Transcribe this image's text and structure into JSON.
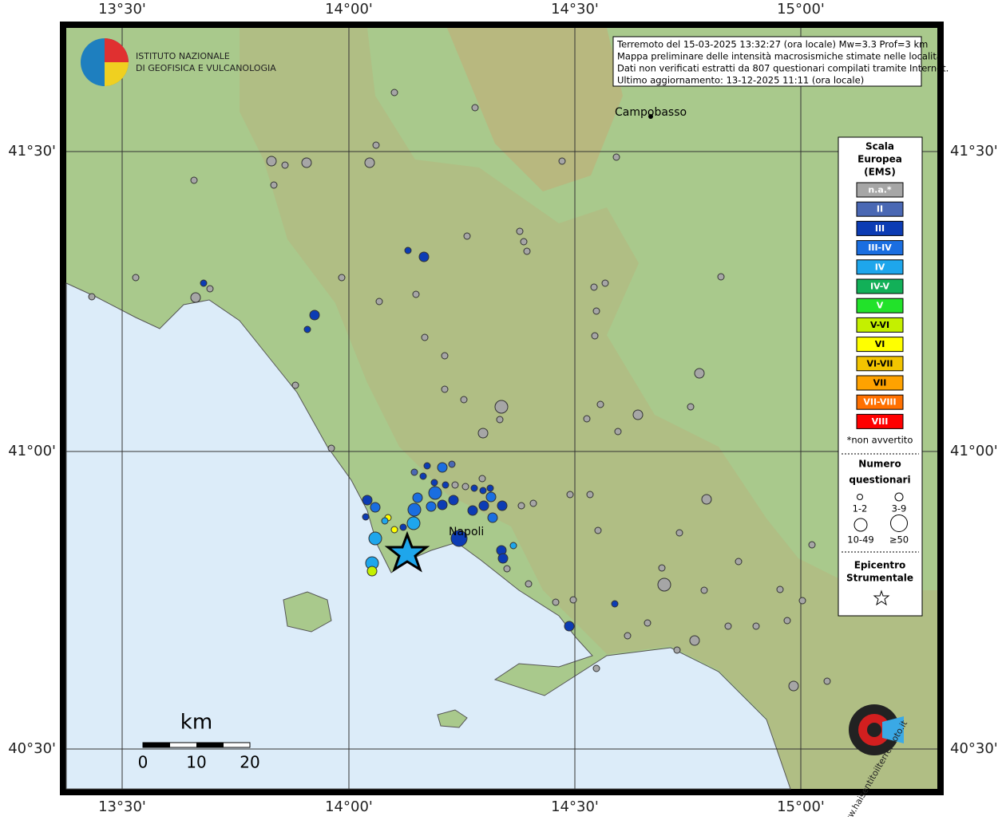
{
  "map": {
    "info": [
      "Terremoto del 15-03-2025 13:32:27 (ora locale) Mw=3.3 Prof=3 km",
      "Mappa preliminare delle intensità macrosismiche stimate nelle località",
      "Dati non verificati estratti da 807 questionari compilati tramite Internet.",
      "Ultimo aggiornamento: 13-12-2025 11:11 (ora locale)"
    ],
    "logo": [
      "ISTITUTO NAZIONALE",
      "DI GEOFISICA E VULCANOLOGIA"
    ],
    "places": [
      "Campobasso",
      "Napoli"
    ],
    "lon_labels": [
      "13°30'",
      "14°00'",
      "14°30'",
      "15°00'"
    ],
    "lat_labels": [
      "41°30'",
      "41°00'",
      "40°30'"
    ],
    "legend": {
      "title": [
        "Scala",
        "Europea",
        "(EMS)"
      ],
      "classes": [
        {
          "label": "n.a.*",
          "color": "#a6a6a6"
        },
        {
          "label": "II",
          "color": "#4a68b4"
        },
        {
          "label": "III",
          "color": "#0c3cb4"
        },
        {
          "label": "III-IV",
          "color": "#1a6ee0"
        },
        {
          "label": "IV",
          "color": "#1ea6ec"
        },
        {
          "label": "IV-V",
          "color": "#12b058"
        },
        {
          "label": "V",
          "color": "#22e22a"
        },
        {
          "label": "V-VI",
          "color": "#c4f000"
        },
        {
          "label": "VI",
          "color": "#ffff00"
        },
        {
          "label": "VI-VII",
          "color": "#f2c400"
        },
        {
          "label": "VII",
          "color": "#ffa200"
        },
        {
          "label": "VII-VIII",
          "color": "#ff7000"
        },
        {
          "label": "VIII",
          "color": "#ff0000"
        }
      ],
      "note": "*non avvertito",
      "size_title": [
        "Numero",
        "questionari"
      ],
      "sizes": [
        "1-2",
        "3-9",
        "10-49",
        "≥50"
      ],
      "epicenter_title": [
        "Epicentro",
        "Strumentale"
      ]
    },
    "scale": {
      "unit": "km",
      "ticks": [
        0,
        10,
        20
      ]
    },
    "watermark": "www.haisentitoilterremoto.it"
  }
}
